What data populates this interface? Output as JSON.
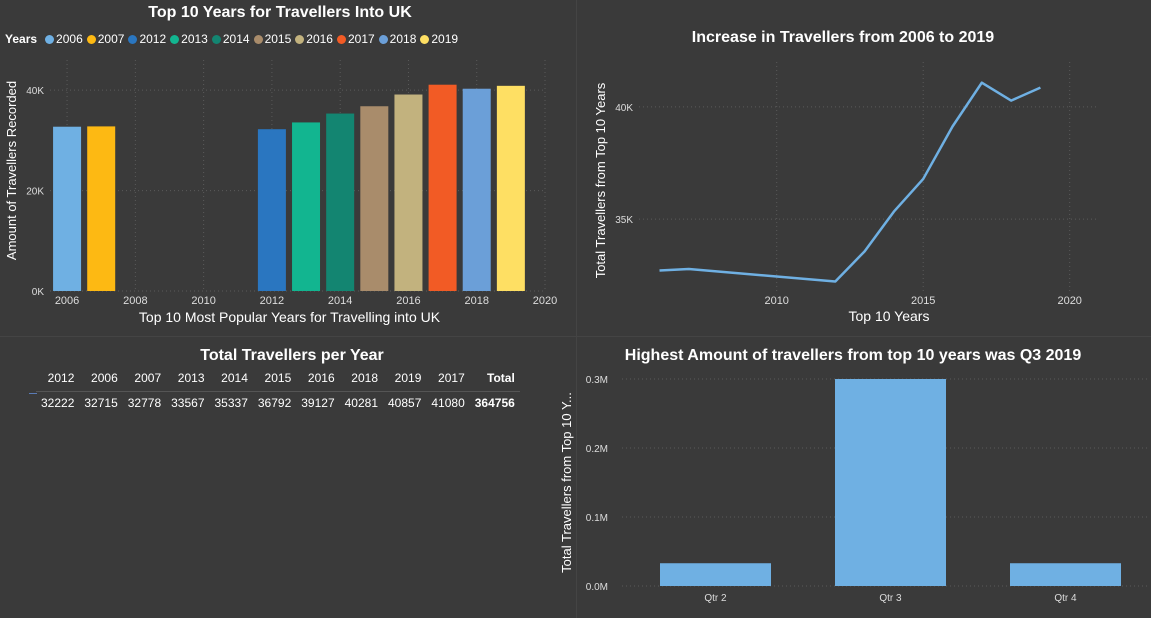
{
  "chart_data": [
    {
      "type": "bar",
      "title": "Top 10 Years for Travellers Into UK",
      "xlabel": "Top 10 Most Popular Years for Travelling into UK",
      "ylabel": "Amount of Travellers Recorded",
      "legend_title": "Years",
      "legend_position": "top-left",
      "x": [
        2006,
        2007,
        2012,
        2013,
        2014,
        2015,
        2016,
        2017,
        2018,
        2019
      ],
      "values": [
        32715,
        32778,
        32222,
        33567,
        35337,
        36792,
        39127,
        41080,
        40281,
        40857
      ],
      "colors": [
        "#6fb0e3",
        "#fdb913",
        "#2a76c0",
        "#12b590",
        "#138571",
        "#a98c6b",
        "#c2b27e",
        "#f25b25",
        "#6b9fd8",
        "#fedf63"
      ],
      "xlim": [
        2005.5,
        2020
      ],
      "xticks": [
        2006,
        2008,
        2010,
        2012,
        2014,
        2016,
        2018,
        2020
      ],
      "ylim": [
        0,
        46000
      ],
      "yticks": [
        0,
        20000,
        40000
      ],
      "ytick_labels": [
        "0K",
        "20K",
        "40K"
      ],
      "grid": true
    },
    {
      "type": "line",
      "title": "Increase in Travellers from 2006 to 2019",
      "xlabel": "Top 10 Years",
      "ylabel": "Total Travellers from Top 10 Years",
      "x": [
        2006,
        2007,
        2012,
        2013,
        2014,
        2015,
        2016,
        2017,
        2018,
        2019
      ],
      "values": [
        32715,
        32778,
        32222,
        33567,
        35337,
        36792,
        39127,
        41080,
        40281,
        40857
      ],
      "color": "#6fb0e3",
      "xlim": [
        2005.3,
        2021
      ],
      "xticks": [
        2010,
        2015,
        2020
      ],
      "ylim": [
        31800,
        42000
      ],
      "yticks": [
        35000,
        40000
      ],
      "ytick_labels": [
        "35K",
        "40K"
      ],
      "grid": true
    },
    {
      "type": "table",
      "title": "Total Travellers per Year",
      "columns": [
        "2012",
        "2006",
        "2007",
        "2013",
        "2014",
        "2015",
        "2016",
        "2018",
        "2019",
        "2017",
        "Total"
      ],
      "rows": [
        [
          "32222",
          "32715",
          "32778",
          "33567",
          "35337",
          "36792",
          "39127",
          "40281",
          "40857",
          "41080",
          "364756"
        ]
      ]
    },
    {
      "type": "bar",
      "title": "Highest Amount of travellers from top 10 years was Q3 2019",
      "xlabel": "",
      "ylabel": "Total Travellers from Top 10 Y...",
      "categories": [
        "Qtr 2",
        "Qtr 3",
        "Qtr 4"
      ],
      "values": [
        33000,
        300000,
        33000
      ],
      "color": "#6fb0e3",
      "ylim": [
        0,
        300000
      ],
      "yticks": [
        0,
        100000,
        200000,
        300000
      ],
      "ytick_labels": [
        "0.0M",
        "0.1M",
        "0.2M",
        "0.3M"
      ],
      "grid": true
    }
  ]
}
